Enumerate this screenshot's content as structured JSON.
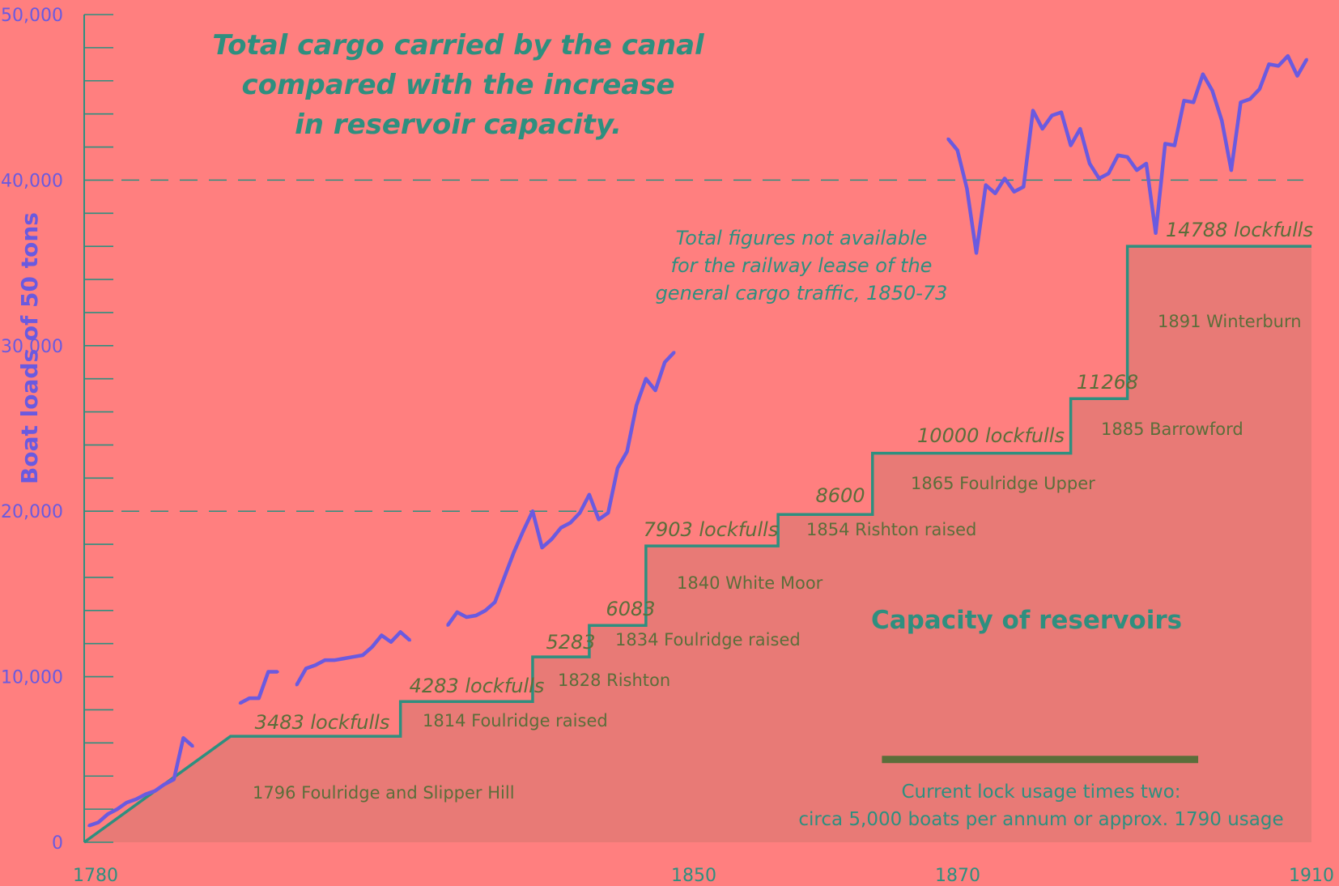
{
  "chart_data": {
    "type": "line",
    "title_lines": [
      "Total cargo carried by the canal",
      "compared with the increase",
      "in reservoir capacity."
    ],
    "ylabel": "Boat loads  of 50 tons",
    "y_ticks": [
      "50,000",
      "40,000",
      "30,000",
      "20,000",
      "10,000",
      "0"
    ],
    "x_ticks": [
      "1780",
      "1850",
      "1870",
      "1910"
    ],
    "ylim": [
      0,
      50000
    ],
    "xlim": [
      1780,
      1910
    ],
    "gridlines": [
      20000,
      40000
    ],
    "cargo_series": [
      {
        "name": "Total cargo carried",
        "segments": [
          [
            [
              1780.5,
              1000
            ],
            [
              1781.5,
              1200
            ],
            [
              1782.5,
              1700
            ],
            [
              1783.5,
              2000
            ],
            [
              1784.5,
              2400
            ],
            [
              1785.5,
              2600
            ],
            [
              1786.5,
              2900
            ],
            [
              1787.5,
              3100
            ],
            [
              1788.5,
              3500
            ],
            [
              1789.5,
              3800
            ],
            [
              1790.5,
              6300
            ],
            [
              1791.5,
              5800
            ]
          ],
          [
            [
              1796.5,
              8400
            ],
            [
              1797.5,
              8700
            ],
            [
              1798.5,
              8700
            ],
            [
              1799.5,
              10300
            ],
            [
              1800.5,
              10300
            ]
          ],
          [
            [
              1802.5,
              9500
            ],
            [
              1803.5,
              10500
            ],
            [
              1804.5,
              10700
            ],
            [
              1805.5,
              11000
            ],
            [
              1806.5,
              11000
            ],
            [
              1807.5,
              11100
            ],
            [
              1808.5,
              11200
            ],
            [
              1809.5,
              11300
            ],
            [
              1810.5,
              11800
            ],
            [
              1811.5,
              12500
            ],
            [
              1812.5,
              12100
            ],
            [
              1813.5,
              12700
            ],
            [
              1814.5,
              12200
            ]
          ],
          [
            [
              1818.5,
              13100
            ],
            [
              1819.5,
              13900
            ],
            [
              1820.5,
              13600
            ],
            [
              1821.5,
              13700
            ],
            [
              1822.5,
              14000
            ],
            [
              1823.5,
              14500
            ],
            [
              1824.5,
              16000
            ],
            [
              1825.5,
              17500
            ],
            [
              1826.5,
              18800
            ],
            [
              1827.5,
              20000
            ],
            [
              1828.5,
              17800
            ],
            [
              1829.5,
              18300
            ],
            [
              1830.5,
              19000
            ],
            [
              1831.5,
              19300
            ],
            [
              1832.5,
              19900
            ],
            [
              1833.5,
              21000
            ],
            [
              1834.5,
              19500
            ],
            [
              1835.5,
              19900
            ],
            [
              1836.5,
              22600
            ],
            [
              1837.5,
              23600
            ],
            [
              1838.5,
              26400
            ],
            [
              1839.5,
              28000
            ],
            [
              1840.5,
              27300
            ],
            [
              1841.5,
              29000
            ],
            [
              1842.5,
              29600
            ]
          ],
          [
            [
              1871.5,
              42500
            ],
            [
              1872.5,
              41800
            ],
            [
              1873.5,
              39500
            ],
            [
              1874.5,
              35600
            ],
            [
              1875.5,
              39700
            ],
            [
              1876.5,
              39200
            ],
            [
              1877.5,
              40100
            ],
            [
              1878.5,
              39300
            ],
            [
              1879.5,
              39600
            ],
            [
              1880.5,
              44200
            ],
            [
              1881.5,
              43100
            ],
            [
              1882.5,
              43900
            ],
            [
              1883.5,
              44100
            ],
            [
              1884.5,
              42100
            ],
            [
              1885.5,
              43100
            ],
            [
              1886.5,
              41000
            ],
            [
              1887.5,
              40100
            ],
            [
              1888.5,
              40400
            ],
            [
              1889.5,
              41500
            ],
            [
              1890.5,
              41400
            ],
            [
              1891.5,
              40600
            ],
            [
              1892.5,
              41000
            ],
            [
              1893.5,
              36800
            ],
            [
              1894.5,
              42200
            ],
            [
              1895.5,
              42100
            ],
            [
              1896.5,
              44800
            ],
            [
              1897.5,
              44700
            ],
            [
              1898.5,
              46400
            ],
            [
              1899.5,
              45400
            ],
            [
              1900.5,
              43600
            ],
            [
              1901.5,
              40600
            ],
            [
              1902.5,
              44700
            ],
            [
              1903.5,
              44900
            ],
            [
              1904.5,
              45500
            ],
            [
              1905.5,
              47000
            ],
            [
              1906.5,
              46900
            ],
            [
              1907.5,
              47500
            ],
            [
              1908.5,
              46300
            ],
            [
              1909.5,
              47300
            ]
          ]
        ]
      }
    ],
    "capacity_steps": [
      [
        1780,
        0
      ],
      [
        1795.5,
        6400
      ],
      [
        1813.5,
        6400
      ],
      [
        1813.5,
        8500
      ],
      [
        1827.5,
        8500
      ],
      [
        1827.5,
        11200
      ],
      [
        1833.5,
        11200
      ],
      [
        1833.5,
        13100
      ],
      [
        1839.5,
        13100
      ],
      [
        1839.5,
        17900
      ],
      [
        1853.5,
        17900
      ],
      [
        1853.5,
        19800
      ],
      [
        1863.5,
        19800
      ],
      [
        1863.5,
        23500
      ],
      [
        1884.5,
        23500
      ],
      [
        1884.5,
        26800
      ],
      [
        1890.5,
        26800
      ],
      [
        1890.5,
        36000
      ],
      [
        1910,
        36000
      ]
    ],
    "volume_labels": [
      "3483 lockfulls",
      "4283 lockfulls",
      "5283",
      "6083",
      "7903 lockfulls",
      "8600",
      "10000 lockfulls",
      "11268",
      "14788 lockfulls"
    ],
    "reservoir_labels": [
      "1796 Foulridge and Slipper Hill",
      "1814 Foulridge raised",
      "1828 Rishton",
      "1834 Foulridge raised",
      "1840 White Moor",
      "1854 Rishton raised",
      "1865 Foulridge Upper",
      "1885 Barrowford",
      "1891 Winterburn"
    ],
    "annotation_lines": [
      "Total figures not available",
      "for the railway lease of the",
      "general cargo traffic, 1850-73"
    ],
    "capacity_label": "Capacity of reservoirs",
    "usage_lines": [
      "Current lock usage times two:",
      "circa 5,000 boats per annum or approx. 1790 usage"
    ],
    "usage_bar": {
      "x_start": 1864.5,
      "x_end": 1898,
      "y": 5000
    },
    "colors": {
      "background": "#ff7f7f",
      "cargo_line": "#6a5ae0",
      "capacity_line": "#2e8f7f",
      "capacity_fill": "#e87a76",
      "usage_bar": "#5b6e3a",
      "gridline": "#2e8f7f"
    }
  }
}
